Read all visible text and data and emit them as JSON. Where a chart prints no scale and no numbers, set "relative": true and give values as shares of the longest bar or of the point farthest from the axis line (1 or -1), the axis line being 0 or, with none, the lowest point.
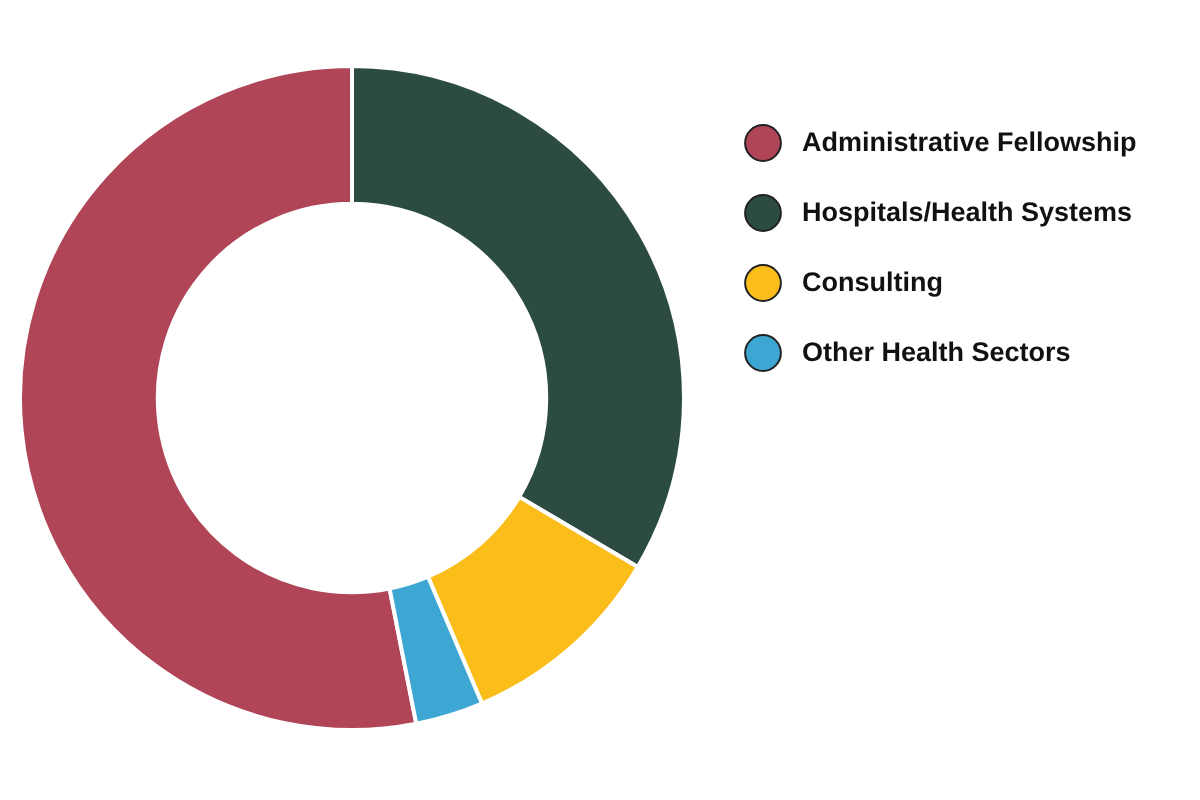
{
  "chart_data": {
    "type": "donut",
    "relative": true,
    "categories": [
      "Administrative Fellowship",
      "Hospitals/Health Systems",
      "Consulting",
      "Other Health Sectors"
    ],
    "values": [
      53.1,
      33.5,
      10.1,
      3.3
    ],
    "colors": [
      "#b04558",
      "#2c4c43",
      "#fbbd1a",
      "#3ea6d3"
    ],
    "legend": "right"
  }
}
